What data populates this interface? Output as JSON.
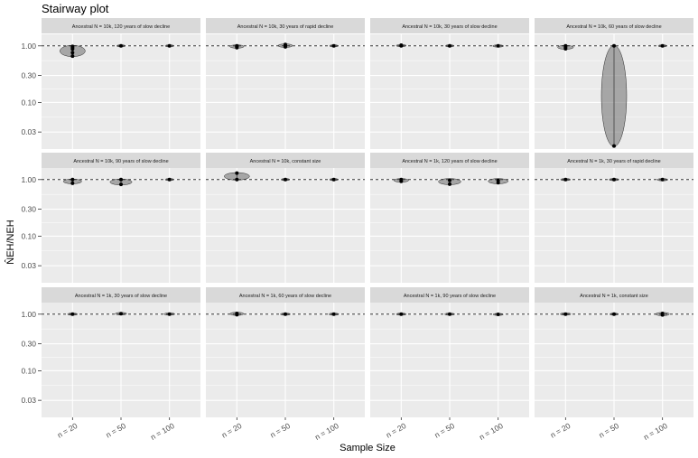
{
  "chart_data": {
    "type": "scatter",
    "title": "Stairway plot",
    "xlabel": "Sample Size",
    "ylabel": "N̂EH/NEH",
    "categories": [
      "n = 20",
      "n = 50",
      "n = 100"
    ],
    "y_scale": "log",
    "y_ticks": [
      1.0,
      0.3,
      0.1,
      0.03
    ],
    "y_tick_labels": [
      "1.00",
      "0.30",
      "0.10",
      "0.03"
    ],
    "ylim": [
      0.015,
      1.6
    ],
    "reference_line": 1.0,
    "grid": true,
    "legend": "none",
    "colors": {
      "panel": "#ebebeb",
      "strip": "#d9d9d9",
      "grid": "#ffffff",
      "points": "#000000",
      "reference": "#333333"
    },
    "panels": [
      {
        "title": "Ancestral N = 10k, 120 years of slow decline",
        "points": [
          [
            0,
            0.98
          ],
          [
            0,
            0.93
          ],
          [
            0,
            0.88
          ],
          [
            0,
            0.76
          ],
          [
            0,
            0.66
          ],
          [
            1,
            1.0
          ],
          [
            2,
            1.0
          ]
        ],
        "ranges": [
          [
            0,
            0.66,
            1.0
          ],
          [
            1,
            0.99,
            1.01
          ],
          [
            2,
            0.99,
            1.01
          ]
        ]
      },
      {
        "title": "Ancestral N = 10k, 30 years of rapid decline",
        "points": [
          [
            0,
            1.0
          ],
          [
            0,
            0.97
          ],
          [
            0,
            0.93
          ],
          [
            1,
            1.06
          ],
          [
            1,
            1.0
          ],
          [
            1,
            0.96
          ],
          [
            2,
            1.0
          ]
        ],
        "ranges": [
          [
            0,
            0.93,
            1.02
          ],
          [
            1,
            0.96,
            1.06
          ],
          [
            2,
            0.99,
            1.01
          ]
        ]
      },
      {
        "title": "Ancestral N = 10k, 30 years of slow decline",
        "points": [
          [
            0,
            1.03
          ],
          [
            0,
            1.0
          ],
          [
            1,
            1.0
          ],
          [
            2,
            1.0
          ]
        ],
        "ranges": [
          [
            0,
            0.99,
            1.03
          ],
          [
            1,
            0.99,
            1.01
          ],
          [
            2,
            0.97,
            1.02
          ]
        ]
      },
      {
        "title": "Ancestral N = 10k, 60 years of slow decline",
        "points": [
          [
            0,
            1.0
          ],
          [
            0,
            0.95
          ],
          [
            0,
            0.89
          ],
          [
            1,
            1.0
          ],
          [
            1,
            0.017
          ],
          [
            2,
            1.0
          ]
        ],
        "ranges": [
          [
            0,
            0.89,
            1.0
          ],
          [
            1,
            0.017,
            1.0
          ],
          [
            2,
            0.99,
            1.01
          ]
        ]
      },
      {
        "title": "Ancestral N = 10k, 90 years of slow decline",
        "points": [
          [
            0,
            1.0
          ],
          [
            0,
            0.86
          ],
          [
            1,
            1.0
          ],
          [
            1,
            0.82
          ],
          [
            2,
            1.0
          ]
        ],
        "ranges": [
          [
            0,
            0.86,
            1.0
          ],
          [
            1,
            0.82,
            1.0
          ],
          [
            2,
            0.99,
            1.01
          ]
        ]
      },
      {
        "title": "Ancestral N = 10k, constant size",
        "points": [
          [
            0,
            1.3
          ],
          [
            0,
            1.0
          ],
          [
            1,
            1.0
          ],
          [
            2,
            1.0
          ]
        ],
        "ranges": [
          [
            0,
            1.0,
            1.3
          ],
          [
            1,
            0.99,
            1.01
          ],
          [
            2,
            0.99,
            1.01
          ]
        ]
      },
      {
        "title": "Ancestral N = 1k, 120 years of slow decline",
        "points": [
          [
            0,
            1.0
          ],
          [
            0,
            0.93
          ],
          [
            1,
            0.97
          ],
          [
            1,
            0.83
          ],
          [
            2,
            0.97
          ],
          [
            2,
            0.88
          ]
        ],
        "ranges": [
          [
            0,
            0.92,
            1.02
          ],
          [
            1,
            0.83,
            1.02
          ],
          [
            2,
            0.86,
            1.02
          ]
        ]
      },
      {
        "title": "Ancestral N = 1k, 30 years of rapid decline",
        "points": [
          [
            0,
            1.0
          ],
          [
            1,
            1.0
          ],
          [
            2,
            1.0
          ]
        ],
        "ranges": [
          [
            0,
            0.98,
            1.02
          ],
          [
            1,
            0.98,
            1.02
          ],
          [
            2,
            0.97,
            1.02
          ]
        ]
      },
      {
        "title": "Ancestral N = 1k, 30 years of slow decline",
        "points": [
          [
            0,
            1.0
          ],
          [
            1,
            1.02
          ],
          [
            2,
            1.0
          ]
        ],
        "ranges": [
          [
            0,
            0.98,
            1.02
          ],
          [
            1,
            0.99,
            1.05
          ],
          [
            2,
            0.98,
            1.03
          ]
        ]
      },
      {
        "title": "Ancestral N = 1k, 60 years of slow decline",
        "points": [
          [
            0,
            1.03
          ],
          [
            0,
            0.98
          ],
          [
            1,
            1.0
          ],
          [
            2,
            1.0
          ]
        ],
        "ranges": [
          [
            0,
            0.97,
            1.06
          ],
          [
            1,
            0.98,
            1.02
          ],
          [
            2,
            0.98,
            1.02
          ]
        ]
      },
      {
        "title": "Ancestral N = 1k, 90 years of slow decline",
        "points": [
          [
            0,
            1.0
          ],
          [
            1,
            1.0
          ],
          [
            2,
            0.99
          ]
        ],
        "ranges": [
          [
            0,
            0.98,
            1.02
          ],
          [
            1,
            0.98,
            1.02
          ],
          [
            2,
            0.97,
            1.01
          ]
        ]
      },
      {
        "title": "Ancestral N = 1k, constant size",
        "points": [
          [
            0,
            1.0
          ],
          [
            1,
            1.0
          ],
          [
            2,
            1.03
          ],
          [
            2,
            0.97
          ]
        ],
        "ranges": [
          [
            0,
            0.98,
            1.03
          ],
          [
            1,
            0.99,
            1.01
          ],
          [
            2,
            0.96,
            1.05
          ]
        ]
      }
    ]
  }
}
